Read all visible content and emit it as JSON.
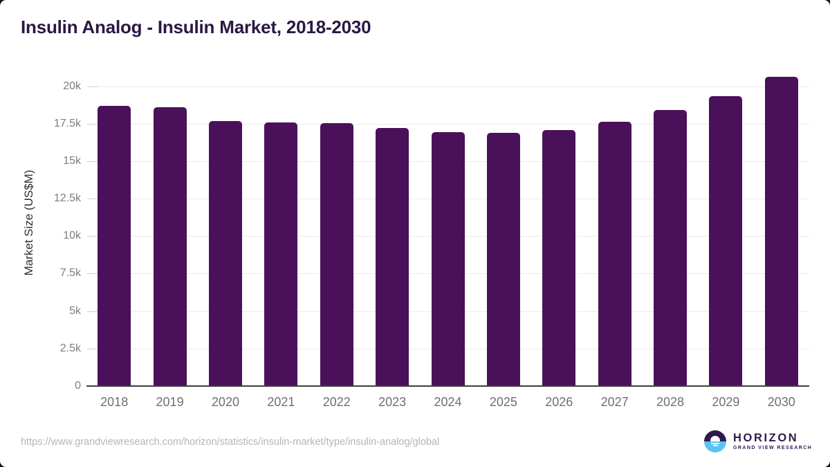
{
  "page": {
    "title": "Insulin Analog - Insulin Market, 2018-2030"
  },
  "chart_data": {
    "type": "bar",
    "title": "Insulin Analog - Insulin Market, 2018-2030",
    "categories": [
      "2018",
      "2019",
      "2020",
      "2021",
      "2022",
      "2023",
      "2024",
      "2025",
      "2026",
      "2027",
      "2028",
      "2029",
      "2030"
    ],
    "values": [
      18700,
      18580,
      17650,
      17600,
      17520,
      17230,
      16950,
      16890,
      17050,
      17610,
      18430,
      19330,
      20630
    ],
    "xlabel": "",
    "ylabel": "Market Size (US$M)",
    "ylim": [
      0,
      20000
    ],
    "yticks": [
      0,
      2500,
      5000,
      7500,
      10000,
      12500,
      15000,
      17500,
      20000
    ],
    "ytick_labels": [
      "0",
      "2.5k",
      "5k",
      "7.5k",
      "10k",
      "12.5k",
      "15k",
      "17.5k",
      "20k"
    ],
    "grid": true,
    "legend": "none",
    "bar_color": "#4A115A"
  },
  "footer": {
    "source_url": "https://www.grandviewresearch.com/horizon/statistics/insulin-market/type/insulin-analog/global",
    "logo": {
      "name": "HORIZON",
      "tagline": "GRAND VIEW RESEARCH"
    }
  },
  "colors": {
    "bar": "#4A115A",
    "title_text": "#2A1745",
    "logo_navy": "#2D1A4D",
    "logo_blue": "#5BC3EF",
    "gridline": "#eaeaea",
    "axis_line": "#3d3d3d"
  }
}
